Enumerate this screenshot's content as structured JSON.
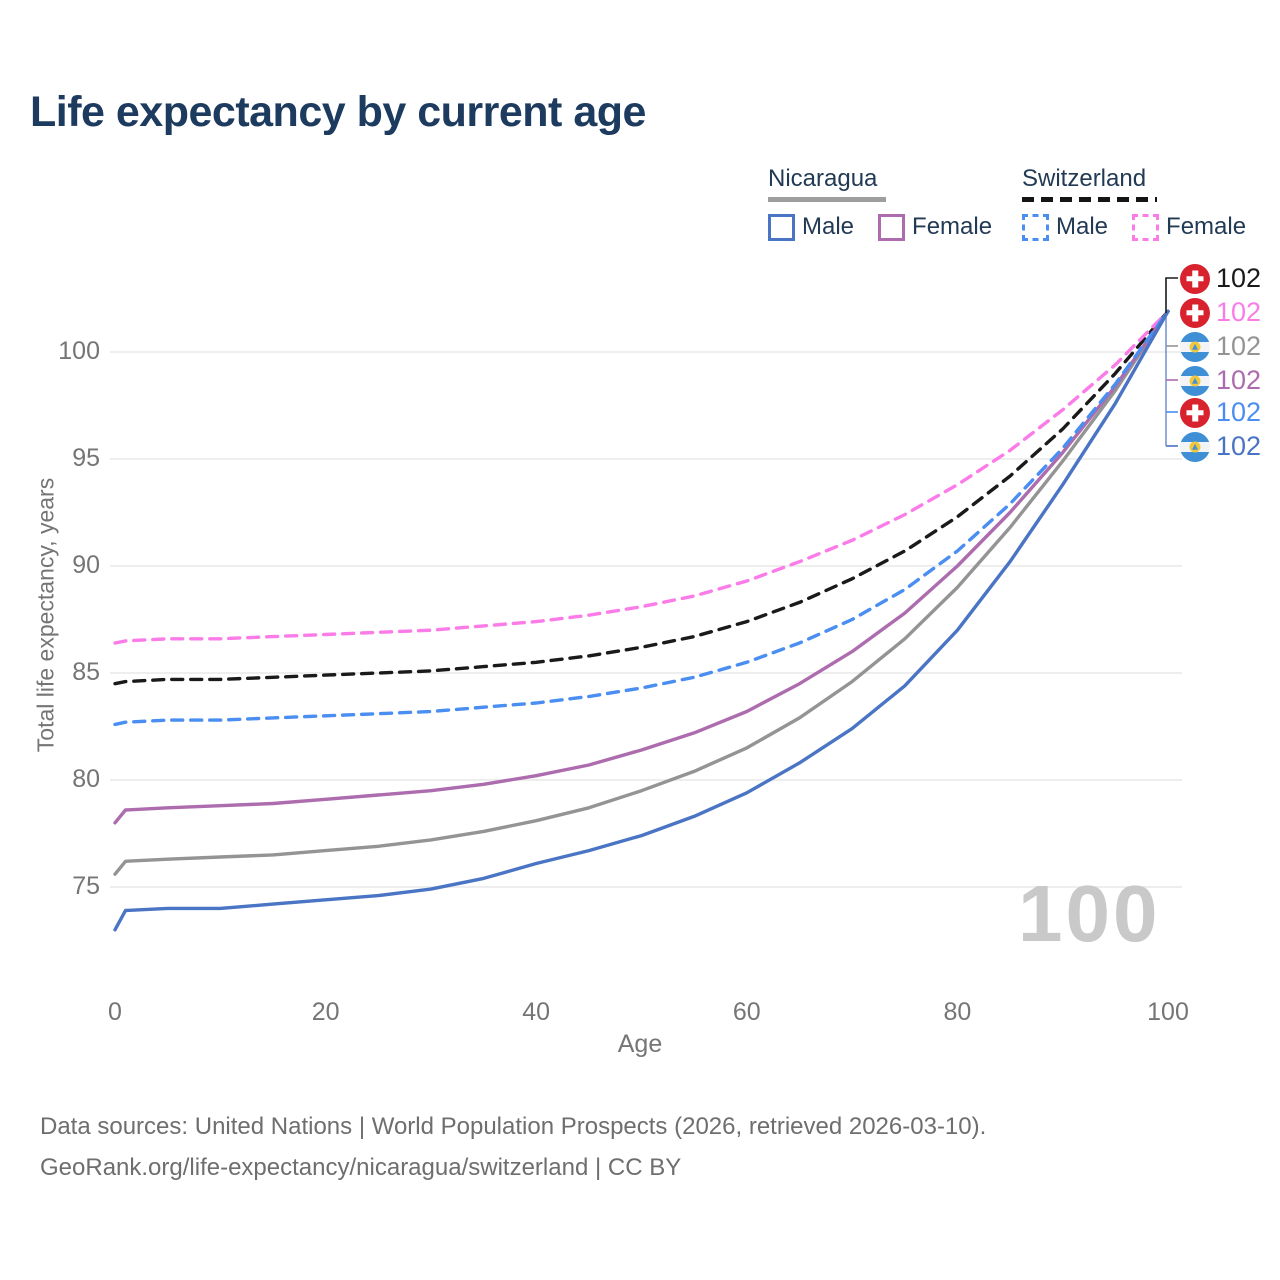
{
  "title": "Life expectancy by current age",
  "legend": {
    "groups": [
      {
        "label": "Nicaragua",
        "line_style": "solid",
        "items": [
          {
            "label": "Male"
          },
          {
            "label": "Female"
          }
        ]
      },
      {
        "label": "Switzerland",
        "line_style": "dashed",
        "items": [
          {
            "label": "Male"
          },
          {
            "label": "Female"
          }
        ]
      }
    ]
  },
  "colors": {
    "title_text": "#1d3a5f",
    "axis_text": "#757575",
    "grid": "#e8e8e8",
    "watermark": "#c9c9c9",
    "nicaragua_male": "#4a74c4",
    "nicaragua_female": "#ad6cad",
    "nicaragua_total": "#949494",
    "switzerland_male": "#4a8ef2",
    "switzerland_female": "#fb7ce8",
    "switzerland_total": "#1a1a1a",
    "swiss_flag_red": "#d8222e",
    "nicaragua_flag_blue": "#3f8fd6",
    "nicaragua_flag_gold": "#f0c83c"
  },
  "chart_data": {
    "type": "line",
    "title": "Life expectancy by current age",
    "xlabel": "Age",
    "ylabel": "Total life expectancy, years",
    "watermark": "100",
    "x_ticks": [
      0,
      20,
      40,
      60,
      80,
      100
    ],
    "y_ticks": [
      75,
      80,
      85,
      90,
      95,
      100
    ],
    "xlim": [
      0,
      100
    ],
    "ylim": [
      71,
      104
    ],
    "grid": "horizontal-only",
    "legend_position": "top-right",
    "x": [
      0,
      1,
      5,
      10,
      15,
      20,
      25,
      30,
      35,
      40,
      45,
      50,
      55,
      60,
      65,
      70,
      75,
      80,
      85,
      90,
      95,
      100
    ],
    "series": [
      {
        "id": "switzerland_total",
        "name": "Switzerland Total",
        "country": "Switzerland",
        "dash": true,
        "color_key": "switzerland_total",
        "flag": "ch",
        "end_label": "102",
        "values": [
          84.5,
          84.6,
          84.7,
          84.7,
          84.8,
          84.9,
          85.0,
          85.1,
          85.3,
          85.5,
          85.8,
          86.2,
          86.7,
          87.4,
          88.3,
          89.4,
          90.7,
          92.3,
          94.2,
          96.4,
          99.0,
          101.9
        ]
      },
      {
        "id": "switzerland_female",
        "name": "Switzerland Female",
        "country": "Switzerland",
        "dash": true,
        "color_key": "switzerland_female",
        "flag": "ch",
        "end_label": "102",
        "values": [
          86.4,
          86.5,
          86.6,
          86.6,
          86.7,
          86.8,
          86.9,
          87.0,
          87.2,
          87.4,
          87.7,
          88.1,
          88.6,
          89.3,
          90.2,
          91.2,
          92.4,
          93.8,
          95.4,
          97.3,
          99.4,
          101.9
        ]
      },
      {
        "id": "nicaragua_total",
        "name": "Nicaragua Total",
        "country": "Nicaragua",
        "dash": false,
        "color_key": "nicaragua_total",
        "flag": "ni",
        "end_label": "102",
        "values": [
          75.6,
          76.2,
          76.3,
          76.4,
          76.5,
          76.7,
          76.9,
          77.2,
          77.6,
          78.1,
          78.7,
          79.5,
          80.4,
          81.5,
          82.9,
          84.6,
          86.6,
          89.0,
          91.8,
          94.9,
          98.2,
          101.9
        ]
      },
      {
        "id": "nicaragua_female",
        "name": "Nicaragua Female",
        "country": "Nicaragua",
        "dash": false,
        "color_key": "nicaragua_female",
        "flag": "ni",
        "end_label": "102",
        "values": [
          78.0,
          78.6,
          78.7,
          78.8,
          78.9,
          79.1,
          79.3,
          79.5,
          79.8,
          80.2,
          80.7,
          81.4,
          82.2,
          83.2,
          84.5,
          86.0,
          87.8,
          90.0,
          92.5,
          95.3,
          98.4,
          101.9
        ]
      },
      {
        "id": "switzerland_male",
        "name": "Switzerland Male",
        "country": "Switzerland",
        "dash": true,
        "color_key": "switzerland_male",
        "flag": "ch",
        "end_label": "102",
        "values": [
          82.6,
          82.7,
          82.8,
          82.8,
          82.9,
          83.0,
          83.1,
          83.2,
          83.4,
          83.6,
          83.9,
          84.3,
          84.8,
          85.5,
          86.4,
          87.5,
          88.9,
          90.7,
          92.9,
          95.5,
          98.5,
          101.9
        ]
      },
      {
        "id": "nicaragua_male",
        "name": "Nicaragua Male",
        "country": "Nicaragua",
        "dash": false,
        "color_key": "nicaragua_male",
        "flag": "ni",
        "end_label": "102",
        "values": [
          73.0,
          73.9,
          74.0,
          74.0,
          74.2,
          74.4,
          74.6,
          74.9,
          75.4,
          76.1,
          76.7,
          77.4,
          78.3,
          79.4,
          80.8,
          82.4,
          84.4,
          87.0,
          90.2,
          93.8,
          97.6,
          101.9
        ]
      }
    ]
  },
  "footer": {
    "line1": "Data sources: United Nations | World Population Prospects (2026, retrieved 2026-03-10).",
    "line2": "GeoRank.org/life-expectancy/nicaragua/switzerland | CC BY"
  }
}
